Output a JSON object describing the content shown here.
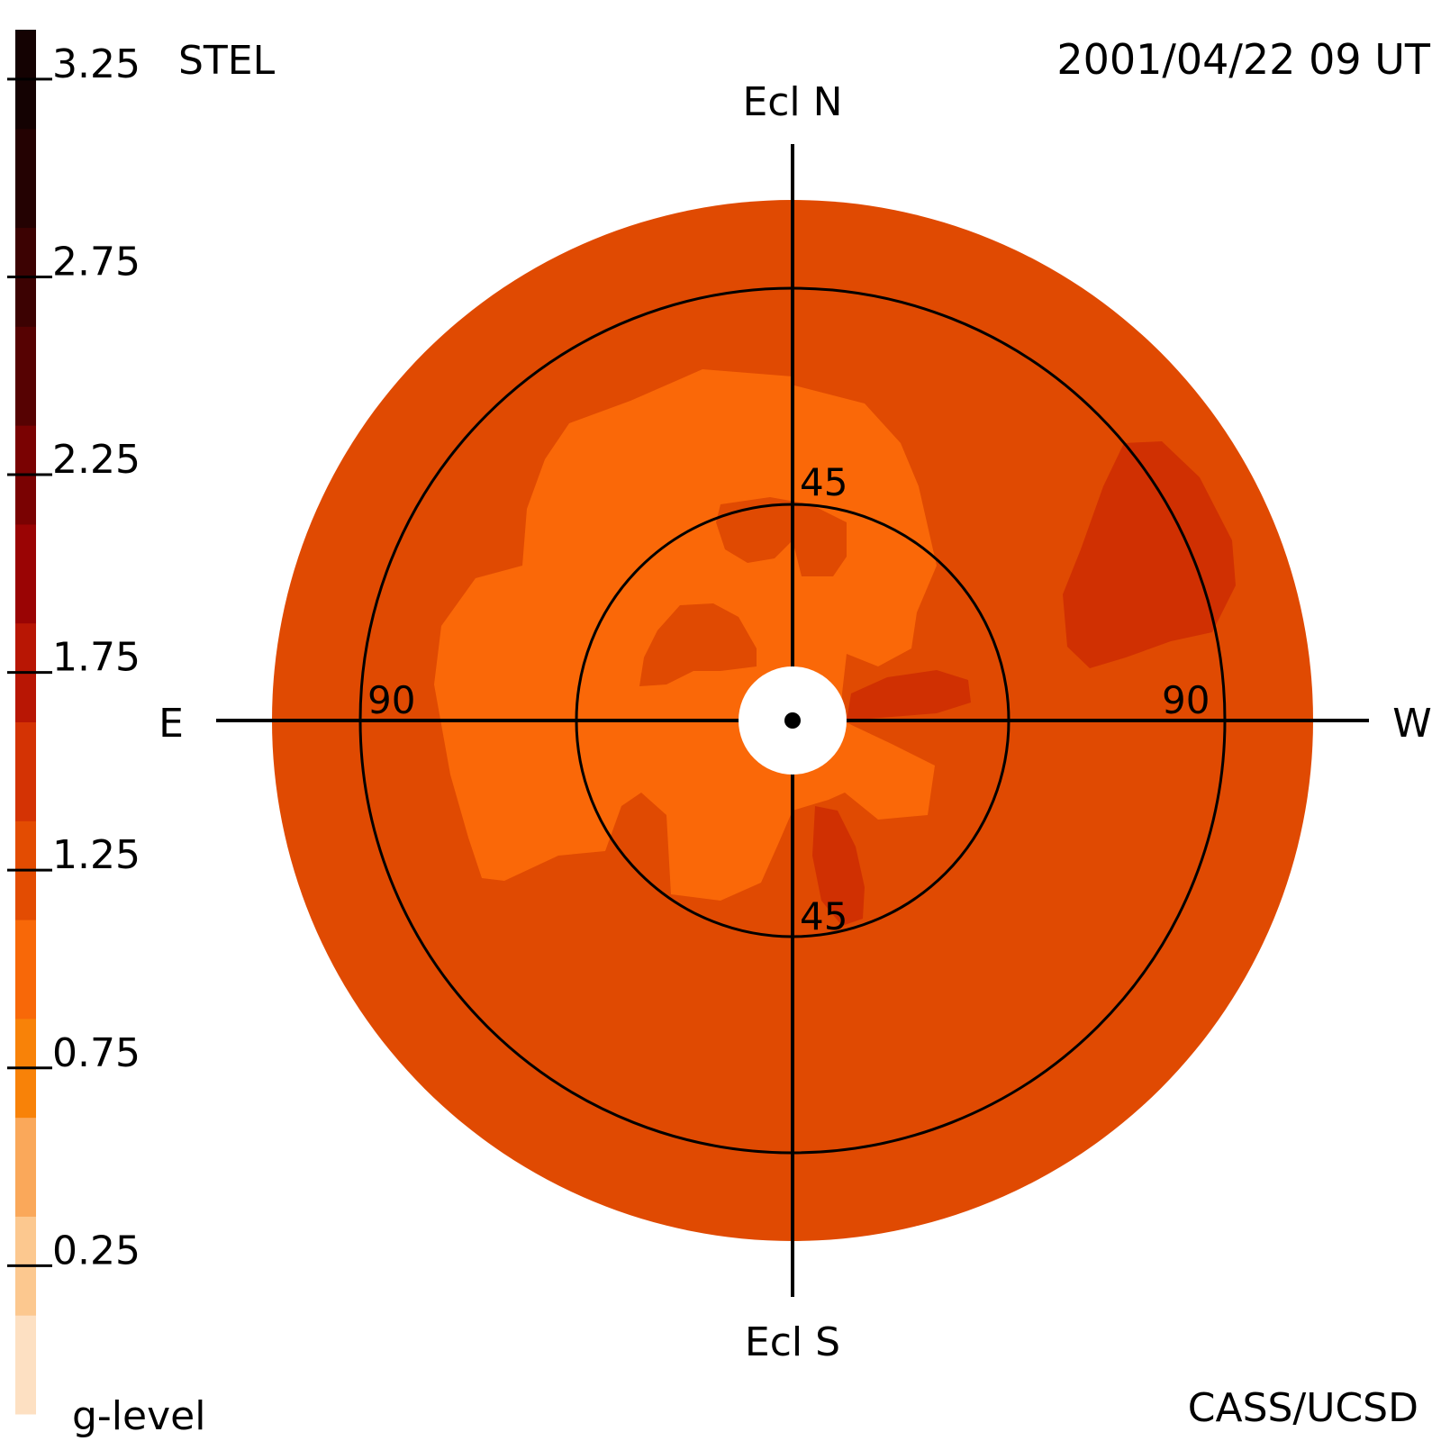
{
  "header": {
    "left_label": "STEL",
    "right_label": "2001/04/22 09 UT"
  },
  "footer": {
    "left_label": "g-level",
    "right_label": "CASS/UCSD"
  },
  "directions": {
    "north": "Ecl N",
    "south": "Ecl S",
    "east": "E",
    "west": "W"
  },
  "ring_labels": {
    "inner_north": "45",
    "inner_south": "45",
    "outer_east": "90",
    "outer_west": "90"
  },
  "colorbar": {
    "bands_bottom_to_top": [
      "#fde0c2",
      "#fcc88f",
      "#faa85a",
      "#f88208",
      "#f86808",
      "#e34c02",
      "#d43304",
      "#b81604",
      "#9a0404",
      "#7a0202",
      "#560202",
      "#3c0202",
      "#240202",
      "#140202"
    ],
    "tick_labels_bottom_to_top": [
      "0.25",
      "0.75",
      "1.25",
      "1.75",
      "2.25",
      "2.75",
      "3.25"
    ]
  },
  "map": {
    "background_color": "#e04a02",
    "low_region_color": "#fa6808",
    "high_region_color": "#d03002",
    "sun_color": "#ffffff"
  }
}
